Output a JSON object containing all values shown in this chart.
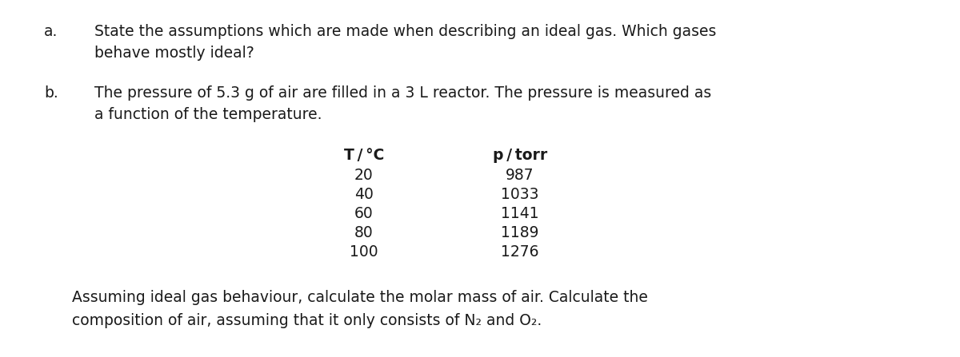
{
  "background_color": "#ffffff",
  "fig_width": 12.0,
  "fig_height": 4.47,
  "dpi": 100,
  "text_color": "#1a1a1a",
  "font_family": "DejaVu Sans",
  "part_a_label": "a.",
  "part_a_line1": "State the assumptions which are made when describing an ideal gas. Which gases",
  "part_a_line2": "behave mostly ideal?",
  "part_b_label": "b.",
  "part_b_line1": "The pressure of 5.3 g of air are filled in a 3 L reactor. The pressure is measured as",
  "part_b_line2": "a function of the temperature.",
  "col1_header": "T / °C",
  "col2_header": "p / torr",
  "table_data": [
    [
      "20",
      "987"
    ],
    [
      "40",
      "1033"
    ],
    [
      "60",
      "1141"
    ],
    [
      "80",
      "1189"
    ],
    [
      "100",
      "1276"
    ]
  ],
  "footer_line1": "Assuming ideal gas behaviour, calculate the molar mass of air. Calculate the",
  "footer_line2": "composition of air, assuming that it only consists of N₂ and O₂.",
  "font_size_text": 13.5,
  "font_size_table": 13.5
}
